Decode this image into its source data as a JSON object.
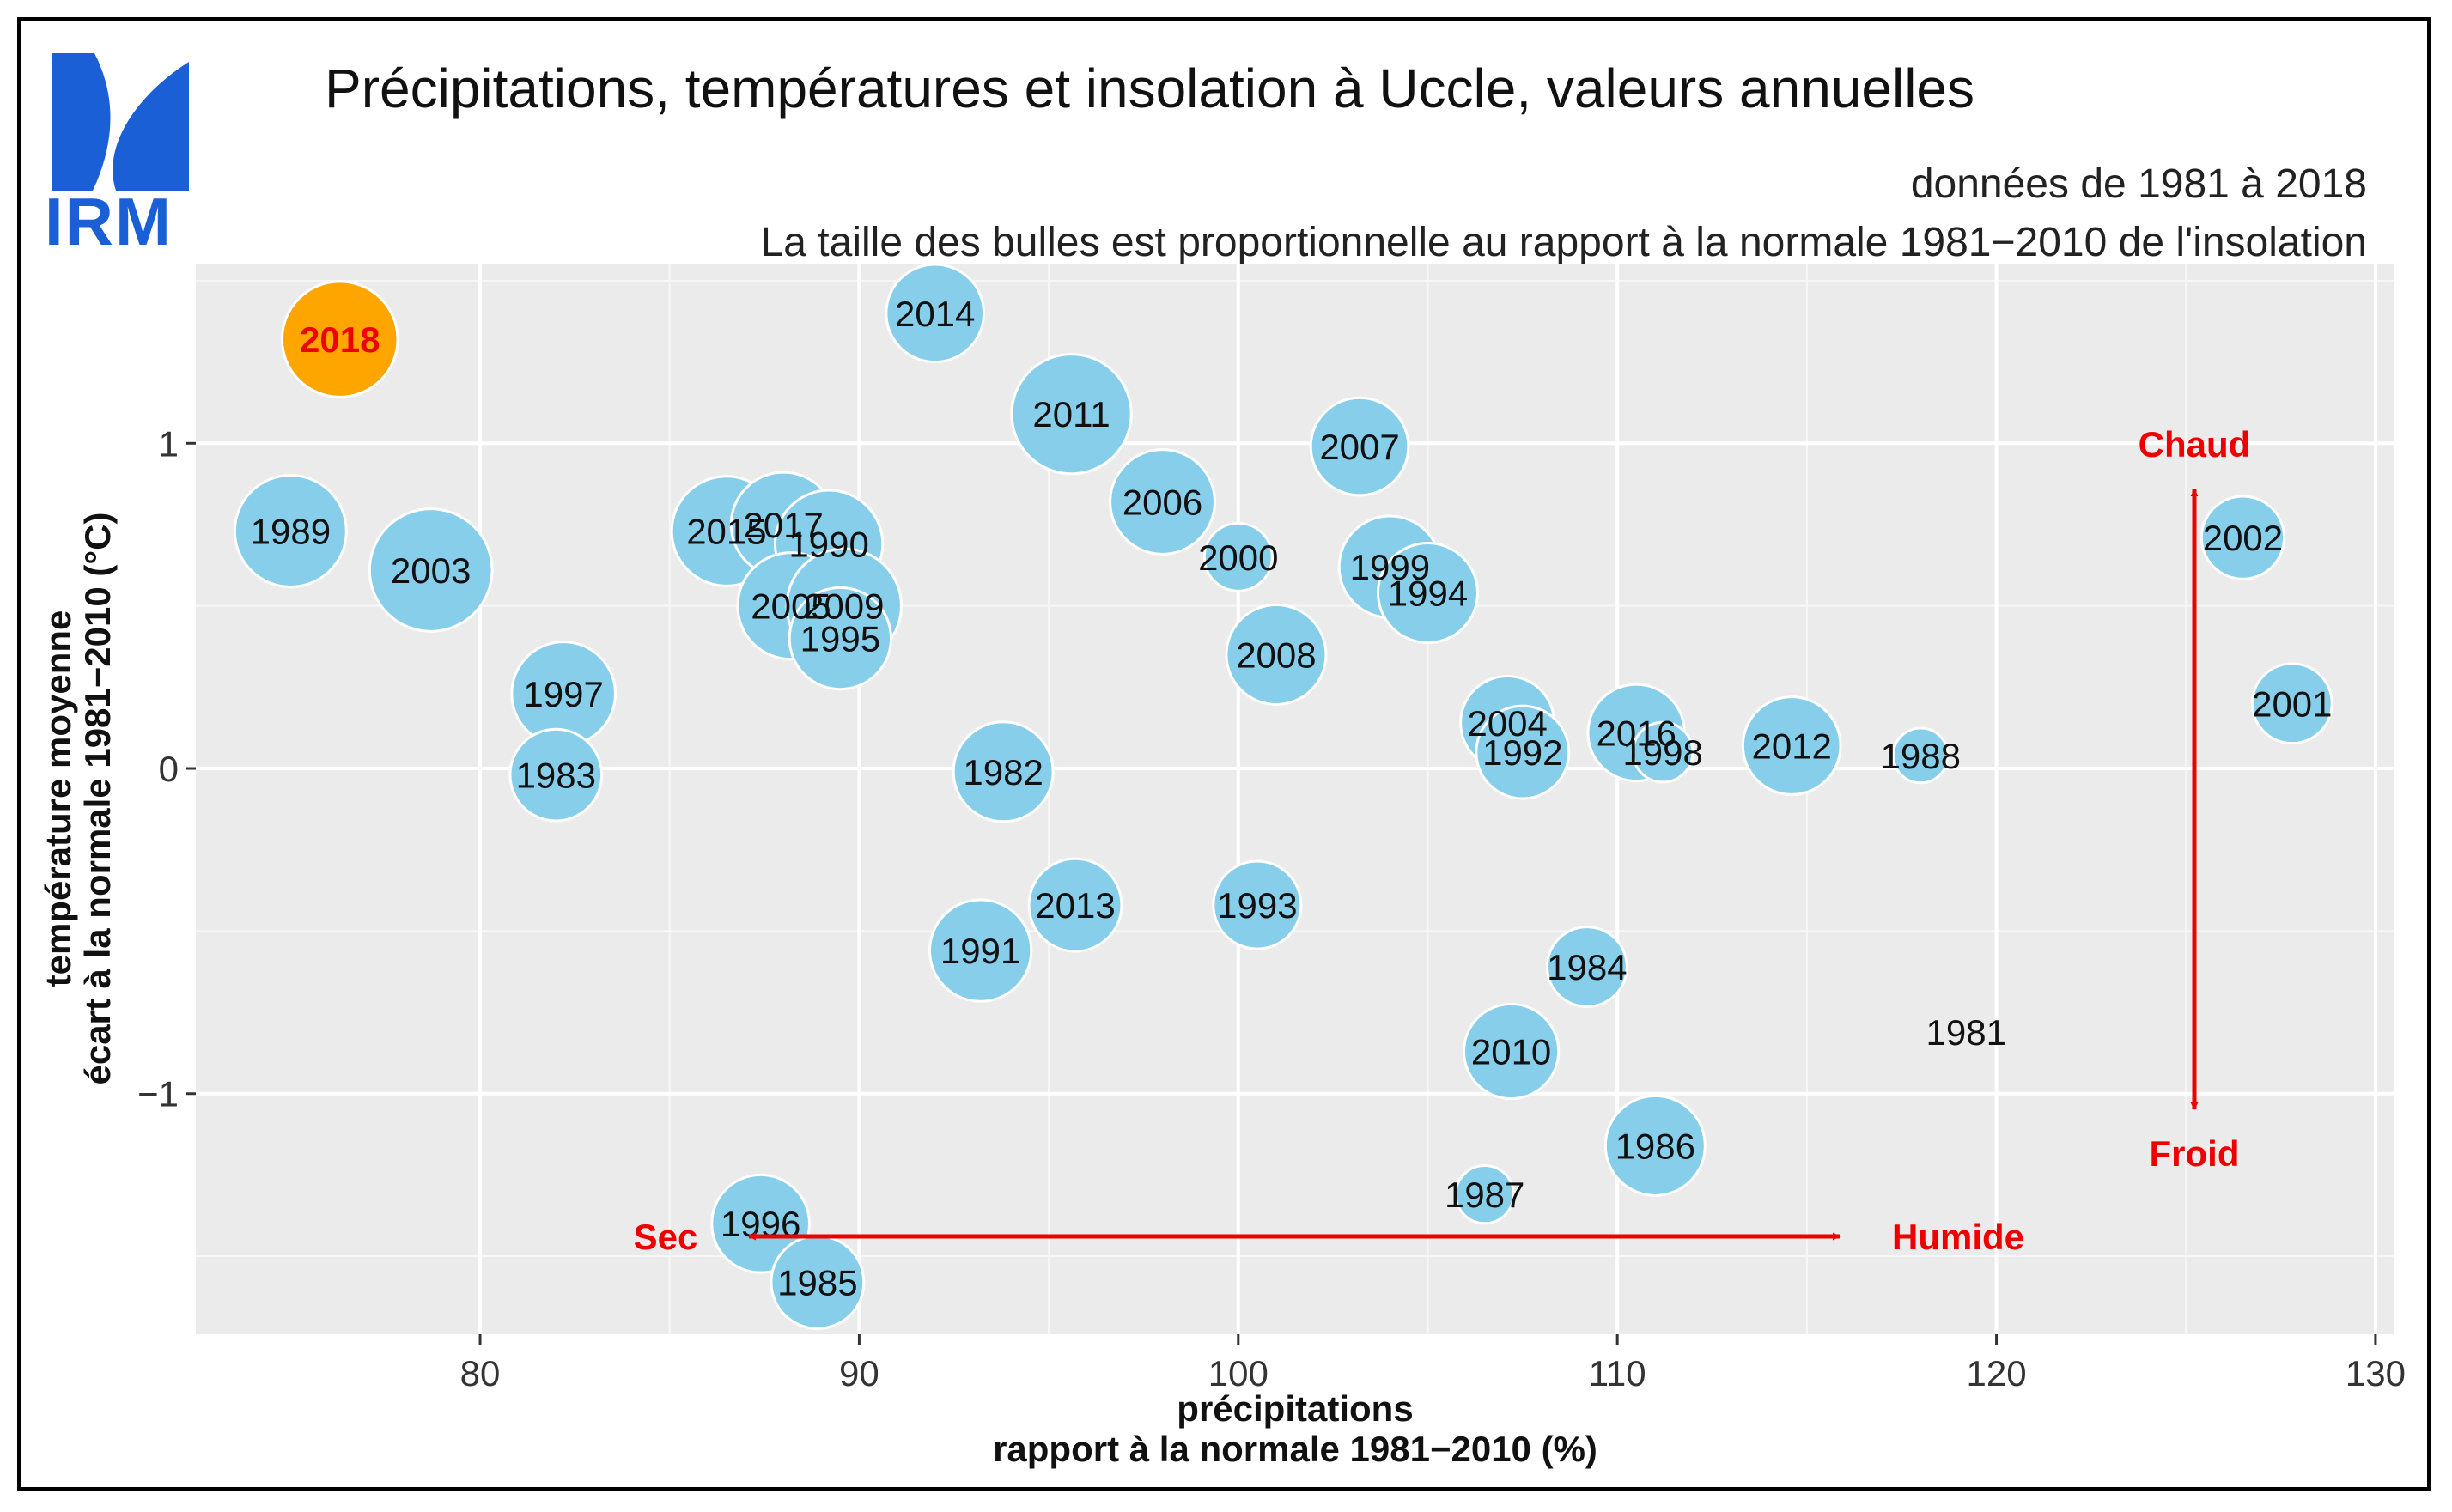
{
  "logo": {
    "text": "IRM",
    "color": "#1a5fd6"
  },
  "chart_data": {
    "type": "scatter",
    "title": "Précipitations, températures et insolation à Uccle, valeurs annuelles",
    "subtitle1": "données de 1981 à 2018",
    "subtitle2": "La taille des bulles est proportionnelle au rapport à la normale 1981−2010 de l'insolation",
    "xlabel1": "précipitations",
    "xlabel2": "rapport à la normale 1981−2010 (%)",
    "ylabel1": "température moyenne",
    "ylabel2": "écart à la normale 1981−2010 (°C)",
    "xlim": [
      72.5,
      130.5
    ],
    "ylim": [
      -1.74,
      1.55
    ],
    "xticks": [
      80,
      90,
      100,
      110,
      120,
      130
    ],
    "yticks": [
      -1,
      0,
      1
    ],
    "ytick_labels": [
      "−1",
      "0",
      "1"
    ],
    "bubble_color": "#87ceeb",
    "highlight_color": "#ffa500",
    "annotations": {
      "chaud": "Chaud",
      "froid": "Froid",
      "sec": "Sec",
      "humide": "Humide",
      "color": "#ee0000"
    },
    "points": [
      {
        "year": "2018",
        "x": 76.3,
        "y": 1.32,
        "size": 1.16,
        "highlight": true
      },
      {
        "year": "1989",
        "x": 75.0,
        "y": 0.73,
        "size": 1.12
      },
      {
        "year": "2003",
        "x": 78.7,
        "y": 0.61,
        "size": 1.23
      },
      {
        "year": "1997",
        "x": 82.2,
        "y": 0.23,
        "size": 1.04
      },
      {
        "year": "1983",
        "x": 82.0,
        "y": -0.02,
        "size": 0.92
      },
      {
        "year": "2015",
        "x": 86.5,
        "y": 0.73,
        "size": 1.1
      },
      {
        "year": "2017",
        "x": 88.0,
        "y": 0.75,
        "size": 1.05
      },
      {
        "year": "1990",
        "x": 89.2,
        "y": 0.69,
        "size": 1.08
      },
      {
        "year": "2005",
        "x": 88.2,
        "y": 0.5,
        "size": 1.07
      },
      {
        "year": "2009",
        "x": 89.6,
        "y": 0.5,
        "size": 1.15
      },
      {
        "year": "1995",
        "x": 89.5,
        "y": 0.4,
        "size": 1.02
      },
      {
        "year": "2014",
        "x": 92.0,
        "y": 1.4,
        "size": 0.98
      },
      {
        "year": "2011",
        "x": 95.6,
        "y": 1.09,
        "size": 1.2
      },
      {
        "year": "2006",
        "x": 98.0,
        "y": 0.82,
        "size": 1.05
      },
      {
        "year": "2000",
        "x": 100.0,
        "y": 0.65,
        "size": 0.68
      },
      {
        "year": "2007",
        "x": 103.2,
        "y": 0.99,
        "size": 0.98
      },
      {
        "year": "2008",
        "x": 101.0,
        "y": 0.35,
        "size": 1.0
      },
      {
        "year": "1999",
        "x": 104.0,
        "y": 0.62,
        "size": 1.02
      },
      {
        "year": "1994",
        "x": 105.0,
        "y": 0.54,
        "size": 1.0
      },
      {
        "year": "1982",
        "x": 93.8,
        "y": -0.01,
        "size": 1.0
      },
      {
        "year": "2004",
        "x": 107.1,
        "y": 0.14,
        "size": 0.94
      },
      {
        "year": "1992",
        "x": 107.5,
        "y": 0.05,
        "size": 0.93
      },
      {
        "year": "2016",
        "x": 110.5,
        "y": 0.11,
        "size": 0.97
      },
      {
        "year": "1998",
        "x": 111.2,
        "y": 0.05,
        "size": 0.6
      },
      {
        "year": "2012",
        "x": 114.6,
        "y": 0.07,
        "size": 0.98
      },
      {
        "year": "1988",
        "x": 118.0,
        "y": 0.04,
        "size": 0.55
      },
      {
        "year": "2002",
        "x": 126.5,
        "y": 0.71,
        "size": 0.83
      },
      {
        "year": "2001",
        "x": 127.8,
        "y": 0.2,
        "size": 0.8
      },
      {
        "year": "2013",
        "x": 95.7,
        "y": -0.42,
        "size": 0.93
      },
      {
        "year": "1993",
        "x": 100.5,
        "y": -0.42,
        "size": 0.88
      },
      {
        "year": "1991",
        "x": 93.2,
        "y": -0.56,
        "size": 1.02
      },
      {
        "year": "1984",
        "x": 109.2,
        "y": -0.61,
        "size": 0.8
      },
      {
        "year": "2010",
        "x": 107.2,
        "y": -0.87,
        "size": 0.95
      },
      {
        "year": "1981",
        "x": 119.2,
        "y": -0.81,
        "size": 0.0
      },
      {
        "year": "1986",
        "x": 111.0,
        "y": -1.16,
        "size": 1.0
      },
      {
        "year": "1987",
        "x": 106.5,
        "y": -1.31,
        "size": 0.58
      },
      {
        "year": "1996",
        "x": 87.4,
        "y": -1.4,
        "size": 0.98
      },
      {
        "year": "1985",
        "x": 88.9,
        "y": -1.58,
        "size": 0.93
      }
    ]
  }
}
